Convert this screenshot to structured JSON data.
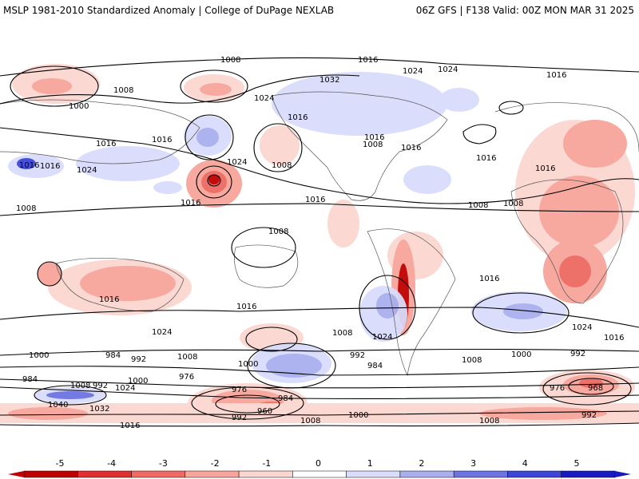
{
  "header": {
    "title": "MSLP 1981-2010 Standardized Anomaly | College of DuPage NEXLAB",
    "valid": "06Z GFS | F138 Valid: 00Z MON MAR 31 2025"
  },
  "isobar_labels": [
    "1016",
    "1008",
    "1024",
    "1024",
    "1032",
    "1016",
    "1000",
    "1008",
    "1016",
    "1016",
    "1024",
    "1016",
    "1024",
    "1008",
    "1016",
    "1024",
    "1016",
    "1008",
    "1016",
    "1008",
    "1016",
    "1016",
    "1008",
    "1016",
    "1008",
    "1008",
    "1016",
    "1016",
    "1016",
    "1024",
    "1016",
    "1024",
    "1008",
    "1016",
    "1024",
    "1016",
    "1000",
    "984",
    "992",
    "1008",
    "1000",
    "992",
    "984",
    "1008",
    "1000",
    "992",
    "976",
    "1000",
    "1008",
    "984",
    "992",
    "976",
    "1024",
    "1040",
    "1032",
    "960",
    "984",
    "992",
    "1000",
    "1008",
    "976",
    "968",
    "992",
    "1008",
    "1016"
  ],
  "legend": {
    "ticks": [
      "-5",
      "-4",
      "-3",
      "-2",
      "-1",
      "0",
      "1",
      "2",
      "3",
      "4",
      "5"
    ],
    "colors": [
      "#c00000",
      "#e03030",
      "#ee6a62",
      "#f7a59a",
      "#fbd6cf",
      "#ffffff",
      "#d9dcfb",
      "#a9afee",
      "#6d73e2",
      "#3d46d6",
      "#1a1ac0"
    ]
  }
}
